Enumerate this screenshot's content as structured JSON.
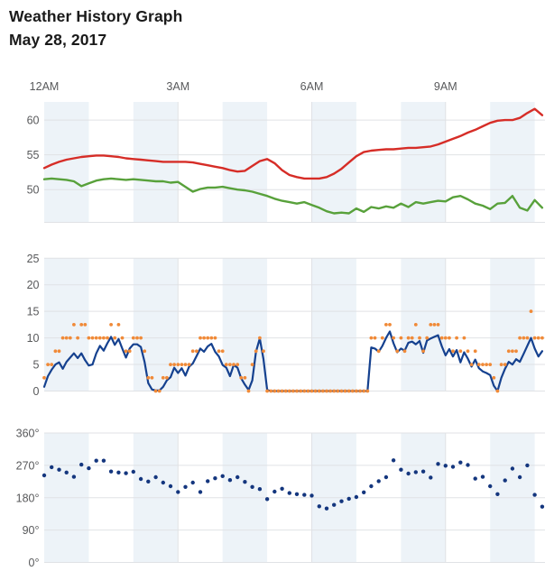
{
  "header": {
    "title": "Weather History Graph",
    "date": "May 28, 2017"
  },
  "axis": {
    "x_labels": [
      "12AM",
      "3AM",
      "6AM",
      "9AM"
    ],
    "x_label_hours": [
      0,
      3,
      6,
      9
    ],
    "gridline_hours": [
      3,
      6,
      9
    ],
    "shaded_hours": [
      0,
      2,
      4,
      6,
      8,
      10
    ],
    "x_range_hours": [
      0,
      11.17
    ]
  },
  "colors": {
    "temperature": "#d62d27",
    "dew_point": "#58a13b",
    "wind_speed": "#15418f",
    "wind_gust": "#f08a38",
    "wind_direction": "#14367e",
    "band": "#edf3f8",
    "gridline": "#e0e2e5",
    "axis_text": "#58595b",
    "title_text": "#1a1a1a"
  },
  "chart_data": [
    {
      "type": "line",
      "name": "temperature-dew-point",
      "x_start_hour": 0,
      "x_step_minutes": 10,
      "ylim": [
        45.3,
        62.6
      ],
      "grid": true,
      "legend": "none",
      "y_ticks": {
        "values": [
          60,
          55,
          50
        ],
        "labels": [
          "60",
          "55",
          "50"
        ]
      },
      "series": [
        {
          "id": "temperature",
          "style": "line",
          "values": [
            53.1,
            53.6,
            54.0,
            54.3,
            54.5,
            54.7,
            54.8,
            54.9,
            54.9,
            54.8,
            54.7,
            54.5,
            54.4,
            54.3,
            54.2,
            54.1,
            54.0,
            54.0,
            54.0,
            54.0,
            53.9,
            53.7,
            53.5,
            53.3,
            53.1,
            52.8,
            52.6,
            52.7,
            53.4,
            54.1,
            54.4,
            53.8,
            52.8,
            52.1,
            51.8,
            51.6,
            51.6,
            51.6,
            51.8,
            52.3,
            53.0,
            53.9,
            54.8,
            55.4,
            55.6,
            55.7,
            55.8,
            55.8,
            55.9,
            56.0,
            56.0,
            56.1,
            56.2,
            56.5,
            56.9,
            57.3,
            57.7,
            58.2,
            58.6,
            59.1,
            59.6,
            59.9,
            60.0,
            60.0,
            60.3,
            61.0,
            61.6,
            60.7
          ]
        },
        {
          "id": "dew_point",
          "style": "line",
          "values": [
            51.5,
            51.6,
            51.5,
            51.4,
            51.2,
            50.5,
            50.9,
            51.3,
            51.5,
            51.6,
            51.5,
            51.4,
            51.5,
            51.4,
            51.3,
            51.2,
            51.2,
            51.0,
            51.1,
            50.4,
            49.7,
            50.1,
            50.3,
            50.3,
            50.4,
            50.2,
            50.0,
            49.9,
            49.7,
            49.4,
            49.1,
            48.7,
            48.4,
            48.2,
            48.0,
            48.2,
            47.8,
            47.4,
            46.9,
            46.6,
            46.7,
            46.6,
            47.3,
            46.8,
            47.5,
            47.3,
            47.6,
            47.4,
            48.0,
            47.5,
            48.2,
            48.0,
            48.2,
            48.4,
            48.3,
            48.9,
            49.1,
            48.6,
            48.0,
            47.7,
            47.2,
            48.0,
            48.1,
            49.1,
            47.4,
            47.0,
            48.5,
            47.4
          ]
        }
      ]
    },
    {
      "type": "line_scatter",
      "name": "wind-speed-gust",
      "x_start_hour": 0,
      "x_step_minutes": 5,
      "ylim": [
        0,
        25
      ],
      "grid": true,
      "legend": "none",
      "y_ticks": {
        "values": [
          25,
          20,
          15,
          10,
          5,
          0
        ],
        "labels": [
          "25",
          "20",
          "15",
          "10",
          "5",
          "0"
        ]
      },
      "series": [
        {
          "id": "wind_speed",
          "style": "line",
          "values": [
            0.8,
            2.8,
            4.0,
            5.0,
            5.4,
            4.2,
            5.5,
            6.3,
            7.1,
            6.2,
            7.1,
            5.8,
            4.8,
            5.0,
            7.1,
            8.5,
            7.6,
            9.0,
            10.2,
            8.7,
            9.8,
            8.0,
            6.3,
            8.0,
            8.8,
            8.8,
            8.3,
            5.5,
            1.5,
            0.3,
            0.1,
            0.1,
            0.8,
            2.0,
            2.6,
            4.4,
            3.4,
            4.3,
            2.9,
            4.6,
            5.2,
            6.6,
            8.0,
            7.4,
            8.4,
            8.9,
            7.4,
            6.5,
            4.9,
            4.4,
            2.8,
            4.9,
            4.4,
            2.4,
            1.2,
            0.2,
            2.0,
            7.4,
            9.9,
            6.0,
            0.2,
            0,
            0,
            0,
            0,
            0,
            0,
            0,
            0,
            0,
            0,
            0,
            0,
            0,
            0,
            0,
            0,
            0,
            0,
            0,
            0,
            0,
            0,
            0,
            0,
            0,
            0,
            0,
            8.2,
            8.0,
            7.4,
            8.5,
            10.0,
            11.2,
            9.0,
            7.3,
            8.0,
            7.6,
            9.1,
            9.3,
            8.8,
            9.4,
            7.2,
            9.5,
            9.9,
            10.2,
            10.5,
            8.4,
            6.7,
            7.9,
            6.5,
            7.7,
            5.4,
            7.3,
            6.1,
            4.6,
            5.9,
            4.3,
            3.7,
            3.4,
            3.0,
            1.0,
            0.0,
            2.5,
            4.2,
            5.5,
            5.0,
            6.0,
            5.5,
            7.0,
            8.5,
            10.0,
            8.0,
            6.5,
            7.5
          ]
        },
        {
          "id": "wind_gust",
          "style": "scatter",
          "values": [
            2.5,
            5,
            5,
            7.5,
            7.5,
            10,
            10,
            10,
            12.5,
            10,
            12.5,
            12.5,
            10,
            10,
            10,
            10,
            10,
            10,
            12.5,
            10,
            12.5,
            10,
            7.5,
            7.5,
            10,
            10,
            10,
            7.5,
            2.5,
            2.5,
            0,
            0,
            2.5,
            2.5,
            5,
            5,
            5,
            5,
            5,
            5,
            7.5,
            7.5,
            10,
            10,
            10,
            10,
            10,
            7.5,
            7.5,
            5,
            5,
            5,
            5,
            2.5,
            2.5,
            0,
            5,
            7.5,
            10,
            7.5,
            0,
            0,
            0,
            0,
            0,
            0,
            0,
            0,
            0,
            0,
            0,
            0,
            0,
            0,
            0,
            0,
            0,
            0,
            0,
            0,
            0,
            0,
            0,
            0,
            0,
            0,
            0,
            0,
            10,
            10,
            7.5,
            10,
            12.5,
            12.5,
            10,
            7.5,
            10,
            7.5,
            10,
            10,
            12.5,
            10,
            7.5,
            10,
            12.5,
            12.5,
            12.5,
            10,
            10,
            10,
            7.5,
            10,
            7.5,
            10,
            7.5,
            5,
            7.5,
            5,
            5,
            5,
            5,
            2.5,
            0,
            5,
            5,
            7.5,
            7.5,
            7.5,
            10,
            10,
            10,
            15,
            10,
            10,
            10
          ]
        }
      ]
    },
    {
      "type": "scatter",
      "name": "wind-direction",
      "x_start_hour": 0,
      "x_step_minutes": 10,
      "ylim": [
        0,
        360
      ],
      "grid": true,
      "legend": "none",
      "y_ticks": {
        "values": [
          360,
          270,
          180,
          90,
          0
        ],
        "labels": [
          "360°",
          "270°",
          "180°",
          "90°",
          "0°"
        ]
      },
      "series": [
        {
          "id": "wind_direction",
          "style": "scatter",
          "values": [
            242,
            265,
            258,
            250,
            238,
            272,
            262,
            283,
            283,
            253,
            250,
            248,
            252,
            232,
            225,
            237,
            222,
            212,
            196,
            210,
            222,
            196,
            226,
            234,
            240,
            229,
            237,
            224,
            210,
            204,
            176,
            197,
            205,
            193,
            190,
            188,
            186,
            156,
            150,
            160,
            170,
            177,
            182,
            195,
            212,
            226,
            237,
            284,
            258,
            247,
            251,
            253,
            236,
            274,
            269,
            266,
            278,
            271,
            233,
            238,
            212,
            190,
            228,
            261,
            237,
            270,
            188,
            155
          ]
        }
      ]
    }
  ]
}
